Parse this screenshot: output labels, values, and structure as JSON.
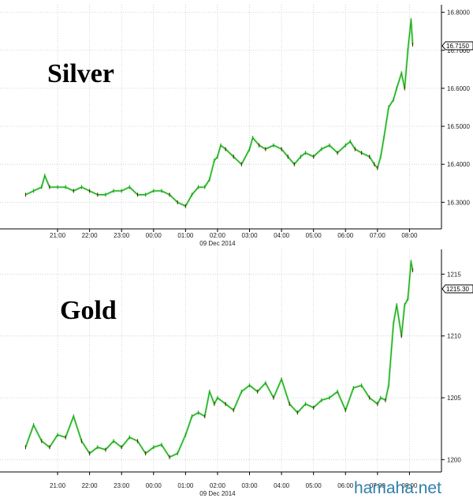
{
  "chart_data": [
    {
      "type": "line",
      "title": "Silver",
      "date_label": "09 Dec 2014",
      "x_ticks": [
        "21:00",
        "22:00",
        "23:00",
        "00:00",
        "01:00",
        "02:00",
        "03:00",
        "04:00",
        "05:00",
        "06:00",
        "07:00",
        "08:00"
      ],
      "y_ticks": [
        "16.3000",
        "16.4000",
        "16.5000",
        "16.6000",
        "16.7000",
        "16.8000"
      ],
      "ylim": [
        16.23,
        16.82
      ],
      "last_value": "16.7150",
      "grid": true,
      "colors": {
        "line": "#1fa31f",
        "highlight": "#b5f5b5",
        "dark": "#5a2a0a"
      },
      "x": [
        20.0,
        20.25,
        20.5,
        20.6,
        20.75,
        21.0,
        21.25,
        21.5,
        21.75,
        22.0,
        22.25,
        22.5,
        22.75,
        23.0,
        23.25,
        23.5,
        23.75,
        24.0,
        24.25,
        24.5,
        24.75,
        25.0,
        25.2,
        25.4,
        25.6,
        25.75,
        25.9,
        26.0,
        26.1,
        26.25,
        26.5,
        26.75,
        27.0,
        27.1,
        27.3,
        27.5,
        27.75,
        28.0,
        28.2,
        28.4,
        28.6,
        28.75,
        29.0,
        29.25,
        29.5,
        29.75,
        30.0,
        30.15,
        30.3,
        30.5,
        30.75,
        30.9,
        31.0,
        31.1,
        31.2,
        31.35,
        31.5,
        31.6,
        31.75,
        31.85,
        31.95,
        32.05,
        32.1
      ],
      "y": [
        16.32,
        16.33,
        16.34,
        16.37,
        16.34,
        16.34,
        16.34,
        16.33,
        16.34,
        16.33,
        16.32,
        16.32,
        16.33,
        16.33,
        16.34,
        16.32,
        16.32,
        16.33,
        16.33,
        16.32,
        16.3,
        16.29,
        16.32,
        16.34,
        16.34,
        16.36,
        16.41,
        16.42,
        16.45,
        16.44,
        16.42,
        16.4,
        16.44,
        16.47,
        16.45,
        16.44,
        16.45,
        16.44,
        16.42,
        16.4,
        16.42,
        16.43,
        16.42,
        16.44,
        16.45,
        16.43,
        16.45,
        16.46,
        16.44,
        16.43,
        16.42,
        16.4,
        16.39,
        16.42,
        16.47,
        16.55,
        16.57,
        16.6,
        16.64,
        16.6,
        16.7,
        16.78,
        16.715
      ]
    },
    {
      "type": "line",
      "title": "Gold",
      "date_label": "09 Dec 2014",
      "x_ticks": [
        "21:00",
        "22:00",
        "23:00",
        "00:00",
        "01:00",
        "02:00",
        "03:00",
        "04:00",
        "05:00",
        "06:00",
        "07:00",
        "08:00"
      ],
      "y_ticks": [
        "1200",
        "1205",
        "1210",
        "1215"
      ],
      "ylim": [
        1199.0,
        1217.0
      ],
      "last_value": "1215.30",
      "grid": true,
      "colors": {
        "line": "#1fa31f",
        "highlight": "#b5f5b5",
        "dark": "#5a2a0a"
      },
      "x": [
        20.0,
        20.25,
        20.5,
        20.75,
        21.0,
        21.25,
        21.5,
        21.75,
        22.0,
        22.25,
        22.5,
        22.75,
        23.0,
        23.25,
        23.5,
        23.75,
        24.0,
        24.25,
        24.5,
        24.75,
        25.0,
        25.2,
        25.4,
        25.6,
        25.75,
        25.9,
        26.0,
        26.25,
        26.5,
        26.75,
        27.0,
        27.25,
        27.5,
        27.75,
        28.0,
        28.25,
        28.5,
        28.75,
        29.0,
        29.25,
        29.5,
        29.75,
        30.0,
        30.25,
        30.5,
        30.75,
        31.0,
        31.1,
        31.25,
        31.35,
        31.5,
        31.6,
        31.75,
        31.85,
        31.95,
        32.05,
        32.1
      ],
      "y": [
        1201.0,
        1202.8,
        1201.5,
        1201.0,
        1202.0,
        1201.8,
        1203.5,
        1201.5,
        1200.5,
        1201.0,
        1200.8,
        1201.5,
        1201.0,
        1201.8,
        1201.5,
        1200.5,
        1201.0,
        1201.2,
        1200.2,
        1200.5,
        1202.0,
        1203.5,
        1203.8,
        1203.5,
        1205.5,
        1204.5,
        1205.0,
        1204.5,
        1204.0,
        1205.5,
        1206.0,
        1205.5,
        1206.2,
        1205.0,
        1206.5,
        1204.5,
        1203.8,
        1204.5,
        1204.2,
        1204.8,
        1205.0,
        1205.5,
        1204.0,
        1205.8,
        1206.0,
        1205.0,
        1204.5,
        1205.0,
        1204.8,
        1206.0,
        1211.0,
        1212.5,
        1210.0,
        1212.5,
        1213.0,
        1216.0,
        1215.3
      ]
    }
  ],
  "watermark": "hamaha.net"
}
